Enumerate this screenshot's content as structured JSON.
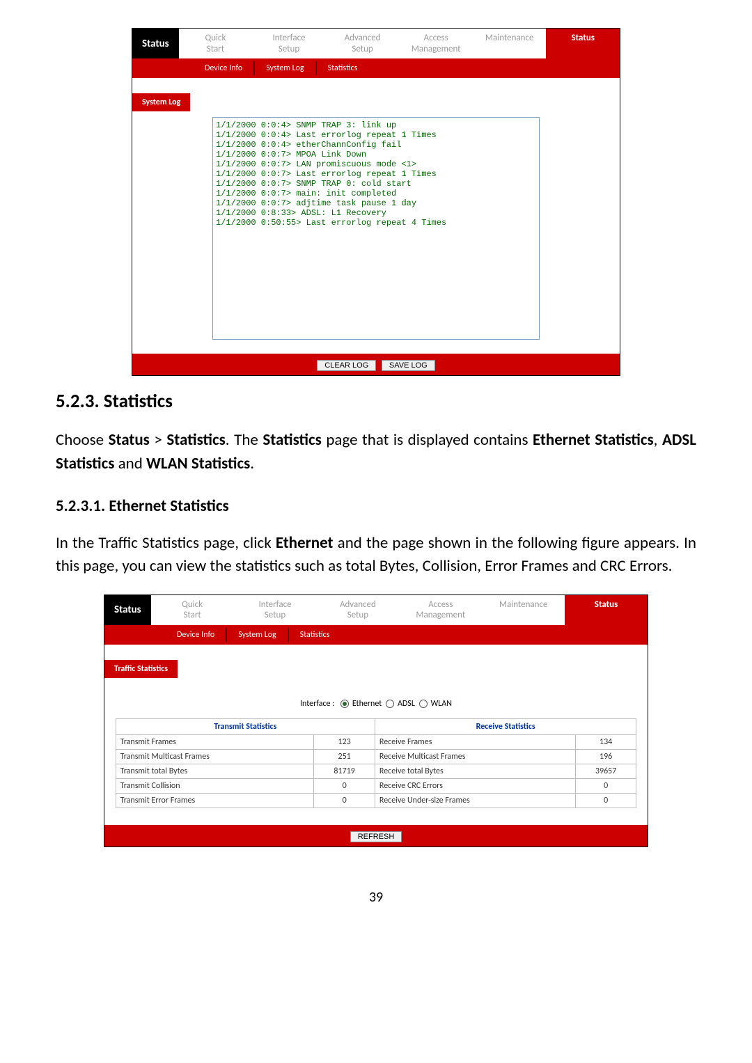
{
  "shot1": {
    "left_label": "Status",
    "nav_tabs": [
      {
        "l1": "Quick",
        "l2": "Start",
        "active": false
      },
      {
        "l1": "Interface",
        "l2": "Setup",
        "active": false
      },
      {
        "l1": "Advanced",
        "l2": "Setup",
        "active": false
      },
      {
        "l1": "Access",
        "l2": "Management",
        "active": false
      },
      {
        "l1": "Maintenance",
        "l2": "",
        "active": false
      },
      {
        "l1": "Status",
        "l2": "",
        "active": true
      }
    ],
    "subnav": [
      "Device Info",
      "System Log",
      "Statistics"
    ],
    "section_label": "System Log",
    "log_text": "1/1/2000 0:0:4> SNMP TRAP 3: link up\n1/1/2000 0:0:4> Last errorlog repeat 1 Times\n1/1/2000 0:0:4> etherChannConfig fail\n1/1/2000 0:0:7> MPOA Link Down\n1/1/2000 0:0:7> LAN promiscuous mode <1>\n1/1/2000 0:0:7> Last errorlog repeat 1 Times\n1/1/2000 0:0:7> SNMP TRAP 0: cold start\n1/1/2000 0:0:7> main: init completed\n1/1/2000 0:0:7> adjtime task pause 1 day\n1/1/2000 0:8:33> ADSL: L1 Recovery\n1/1/2000 0:50:55> Last errorlog repeat 4 Times",
    "buttons": {
      "clear": "CLEAR LOG",
      "save": "SAVE LOG"
    }
  },
  "doc": {
    "h2": "5.2.3.   Statistics",
    "p1_parts": {
      "t1": "Choose ",
      "b1": "Status",
      "t2": " > ",
      "b2": "Statistics",
      "t3": ". The ",
      "b3": "Statistics",
      "t4": " page that is displayed contains ",
      "b4": "Ethernet Statistics",
      "t5": ", ",
      "b5": "ADSL Statistics",
      "t6": " and ",
      "b6": "WLAN Statistics",
      "t7": "."
    },
    "h3": "5.2.3.1.   Ethernet Statistics",
    "p2_parts": {
      "t1": "In the Traffic Statistics page, click ",
      "b1": "Ethernet",
      "t2": " and the page shown in the following figure appears. In this page, you can view the statistics such as total Bytes, Collision, Error Frames and CRC Errors."
    },
    "page_number": "39"
  },
  "shot2": {
    "left_label": "Status",
    "nav_tabs": [
      {
        "l1": "Quick",
        "l2": "Start",
        "active": false
      },
      {
        "l1": "Interface",
        "l2": "Setup",
        "active": false
      },
      {
        "l1": "Advanced",
        "l2": "Setup",
        "active": false
      },
      {
        "l1": "Access",
        "l2": "Management",
        "active": false
      },
      {
        "l1": "Maintenance",
        "l2": "",
        "active": false
      },
      {
        "l1": "Status",
        "l2": "",
        "active": true
      }
    ],
    "subnav": [
      "Device Info",
      "System Log",
      "Statistics"
    ],
    "section_label": "Traffic Statistics",
    "interface_label": "Interface :",
    "radios": [
      {
        "label": "Ethernet",
        "checked": true
      },
      {
        "label": "ADSL",
        "checked": false
      },
      {
        "label": "WLAN",
        "checked": false
      }
    ],
    "headers": {
      "tx": "Transmit Statistics",
      "rx": "Receive Statistics"
    },
    "rows": [
      {
        "tx_label": "Transmit Frames",
        "tx_val": "123",
        "rx_label": "Receive Frames",
        "rx_val": "134"
      },
      {
        "tx_label": "Transmit Multicast Frames",
        "tx_val": "251",
        "rx_label": "Receive Multicast Frames",
        "rx_val": "196"
      },
      {
        "tx_label": "Transmit total Bytes",
        "tx_val": "81719",
        "rx_label": "Receive total Bytes",
        "rx_val": "39657"
      },
      {
        "tx_label": "Transmit Collision",
        "tx_val": "0",
        "rx_label": "Receive CRC Errors",
        "rx_val": "0"
      },
      {
        "tx_label": "Transmit Error Frames",
        "tx_val": "0",
        "rx_label": "Receive Under-size Frames",
        "rx_val": "0"
      }
    ],
    "refresh_button": "REFRESH"
  }
}
